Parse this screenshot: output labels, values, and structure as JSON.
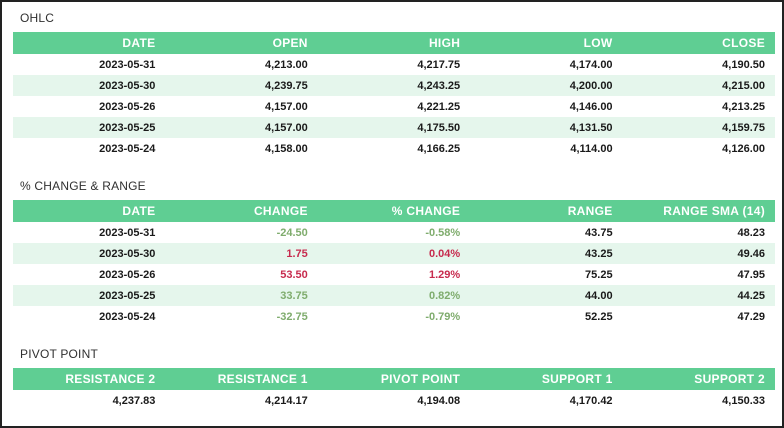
{
  "colors": {
    "header_bg": "#5fce93",
    "row_stripe": "#e5f6ec",
    "value_green": "#7fac6d",
    "value_red": "#c72b4e"
  },
  "ohlc": {
    "title": "OHLC",
    "headers": [
      "DATE",
      "OPEN",
      "HIGH",
      "LOW",
      "CLOSE"
    ],
    "rows": [
      {
        "date": "2023-05-31",
        "open": "4,213.00",
        "high": "4,217.75",
        "low": "4,174.00",
        "close": "4,190.50"
      },
      {
        "date": "2023-05-30",
        "open": "4,239.75",
        "high": "4,243.25",
        "low": "4,200.00",
        "close": "4,215.00"
      },
      {
        "date": "2023-05-26",
        "open": "4,157.00",
        "high": "4,221.25",
        "low": "4,146.00",
        "close": "4,213.25"
      },
      {
        "date": "2023-05-25",
        "open": "4,157.00",
        "high": "4,175.50",
        "low": "4,131.50",
        "close": "4,159.75"
      },
      {
        "date": "2023-05-24",
        "open": "4,158.00",
        "high": "4,166.25",
        "low": "4,114.00",
        "close": "4,126.00"
      }
    ]
  },
  "change_range": {
    "title": "% CHANGE & RANGE",
    "headers": [
      "DATE",
      "CHANGE",
      "% CHANGE",
      "RANGE",
      "RANGE SMA (14)"
    ],
    "rows": [
      {
        "date": "2023-05-31",
        "change": "-24.50",
        "pct_change": "-0.58%",
        "range": "43.75",
        "range_sma": "48.23",
        "trend_color": "green"
      },
      {
        "date": "2023-05-30",
        "change": "1.75",
        "pct_change": "0.04%",
        "range": "43.25",
        "range_sma": "49.46",
        "trend_color": "red"
      },
      {
        "date": "2023-05-26",
        "change": "53.50",
        "pct_change": "1.29%",
        "range": "75.25",
        "range_sma": "47.95",
        "trend_color": "red"
      },
      {
        "date": "2023-05-25",
        "change": "33.75",
        "pct_change": "0.82%",
        "range": "44.00",
        "range_sma": "44.25",
        "trend_color": "green"
      },
      {
        "date": "2023-05-24",
        "change": "-32.75",
        "pct_change": "-0.79%",
        "range": "52.25",
        "range_sma": "47.29",
        "trend_color": "green"
      }
    ]
  },
  "pivot": {
    "title": "PIVOT POINT",
    "headers": [
      "RESISTANCE 2",
      "RESISTANCE 1",
      "PIVOT POINT",
      "SUPPORT 1",
      "SUPPORT 2"
    ],
    "row": {
      "r2": "4,237.83",
      "r1": "4,214.17",
      "pp": "4,194.08",
      "s1": "4,170.42",
      "s2": "4,150.33"
    }
  }
}
